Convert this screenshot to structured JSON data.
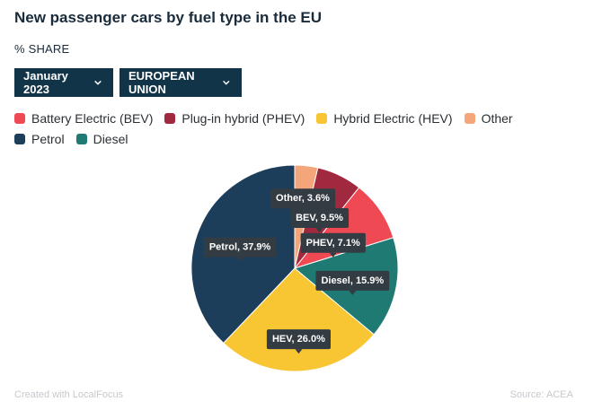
{
  "header": {
    "title": "New passenger cars by fuel type in the EU",
    "subtitle": "% SHARE"
  },
  "filters": {
    "month": "January 2023",
    "region": "EUROPEAN UNION"
  },
  "footer": {
    "credit": "Created with LocalFocus",
    "source": "Source:  ACEA"
  },
  "chart_data": {
    "type": "pie",
    "title": "New passenger cars by fuel type in the EU",
    "subtitle": "% SHARE",
    "legend_position": "top-left",
    "slices": [
      {
        "label": "Other",
        "short": "Other",
        "value": 3.6,
        "color": "#f5a57a"
      },
      {
        "label": "Plug-in hybrid (PHEV)",
        "short": "PHEV",
        "value": 7.1,
        "color": "#a0283f"
      },
      {
        "label": "Battery Electric (BEV)",
        "short": "BEV",
        "value": 9.5,
        "color": "#ef4954"
      },
      {
        "label": "Diesel",
        "short": "Diesel",
        "value": 15.9,
        "color": "#1f7a73"
      },
      {
        "label": "Hybrid Electric (HEV)",
        "short": "HEV",
        "value": 26.0,
        "color": "#f8c632"
      },
      {
        "label": "Petrol",
        "short": "Petrol",
        "value": 37.9,
        "color": "#1d3e5a"
      }
    ],
    "legend": [
      {
        "label": "Battery Electric (BEV)",
        "color": "#ef4954"
      },
      {
        "label": "Plug-in hybrid (PHEV)",
        "color": "#a0283f"
      },
      {
        "label": "Hybrid Electric (HEV)",
        "color": "#f8c632"
      },
      {
        "label": "Other",
        "color": "#f5a57a"
      },
      {
        "label": "Petrol",
        "color": "#1d3e5a"
      },
      {
        "label": "Diesel",
        "color": "#1f7a73"
      }
    ],
    "data_labels": [
      "Other, 3.6%",
      "BEV, 9.5%",
      "PHEV, 7.1%",
      "Diesel, 15.9%",
      "HEV, 26.0%",
      "Petrol, 37.9%"
    ]
  }
}
